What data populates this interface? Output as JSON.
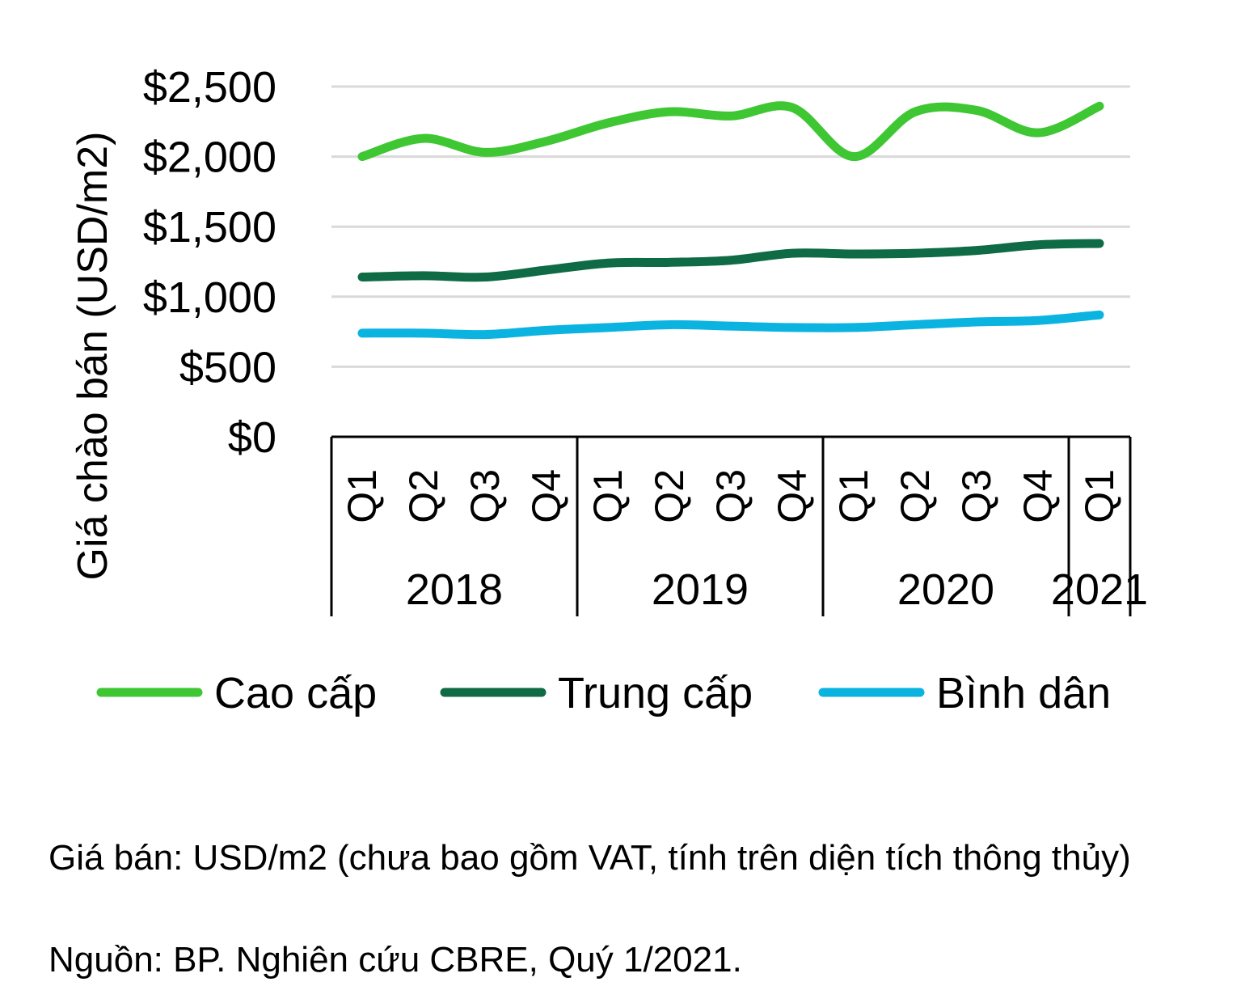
{
  "chart_data": {
    "type": "line",
    "ylabel": "Giá chào bán (USD/m2)",
    "ylim": [
      0,
      2500
    ],
    "yticks": [
      0,
      500,
      1000,
      1500,
      2000,
      2500
    ],
    "ytick_labels": [
      "$0",
      "$500",
      "$1,000",
      "$1,500",
      "$2,000",
      "$2,500"
    ],
    "grid": true,
    "legend_position": "bottom",
    "categories": [
      "Q1",
      "Q2",
      "Q3",
      "Q4",
      "Q1",
      "Q2",
      "Q3",
      "Q4",
      "Q1",
      "Q2",
      "Q3",
      "Q4",
      "Q1"
    ],
    "years": [
      {
        "label": "2018",
        "quarters": 4
      },
      {
        "label": "2019",
        "quarters": 4
      },
      {
        "label": "2020",
        "quarters": 4
      },
      {
        "label": "2021",
        "quarters": 1
      }
    ],
    "series": [
      {
        "name": "Cao cấp",
        "color": "#3ec732",
        "values": [
          2000,
          2130,
          2030,
          2110,
          2240,
          2320,
          2290,
          2350,
          2000,
          2320,
          2330,
          2170,
          2360
        ]
      },
      {
        "name": "Trung cấp",
        "color": "#0f6b45",
        "values": [
          1140,
          1150,
          1140,
          1190,
          1240,
          1245,
          1260,
          1310,
          1305,
          1310,
          1330,
          1370,
          1380
        ]
      },
      {
        "name": "Bình dân",
        "color": "#0bb4e0",
        "values": [
          740,
          740,
          730,
          760,
          780,
          800,
          790,
          780,
          780,
          800,
          820,
          830,
          870
        ]
      }
    ]
  },
  "notes": {
    "line1": "Giá bán: USD/m2 (chưa bao gồm VAT, tính trên diện tích thông thủy)",
    "line2": "Nguồn: BP. Nghiên cứu CBRE, Quý 1/2021."
  }
}
